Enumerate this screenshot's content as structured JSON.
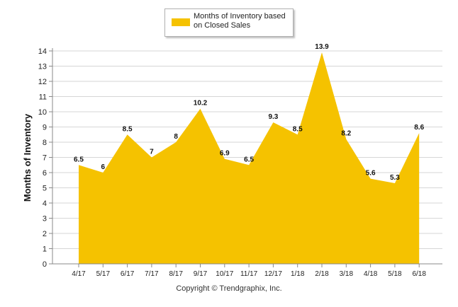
{
  "legend": {
    "label": "Months of Inventory based\non Closed Sales",
    "color": "#F5C200"
  },
  "footer": {
    "copyright": "Copyright © Trendgraphix, Inc."
  },
  "chart_data": {
    "type": "area",
    "title": "",
    "xlabel": "",
    "ylabel": "Months of Inventory",
    "ylim": [
      0,
      14
    ],
    "yticks": [
      0,
      1,
      2,
      3,
      4,
      5,
      6,
      7,
      8,
      9,
      10,
      11,
      12,
      13,
      14
    ],
    "grid": true,
    "legend_position": "top-center",
    "categories": [
      "4/17",
      "5/17",
      "6/17",
      "7/17",
      "8/17",
      "9/17",
      "10/17",
      "11/17",
      "12/17",
      "1/18",
      "2/18",
      "3/18",
      "4/18",
      "5/18",
      "6/18"
    ],
    "series": [
      {
        "name": "Months of Inventory based on Closed Sales",
        "color": "#F5C200",
        "values": [
          6.5,
          6,
          8.5,
          7,
          8,
          10.2,
          6.9,
          6.5,
          9.3,
          8.5,
          13.9,
          8.2,
          5.6,
          5.3,
          8.6
        ],
        "labels": [
          "6.5",
          "6",
          "8.5",
          "7",
          "8",
          "10.2",
          "6.9",
          "6.5",
          "9.3",
          "8.5",
          "13.9",
          "8.2",
          "5.6",
          "5.3",
          "8.6"
        ]
      }
    ]
  }
}
